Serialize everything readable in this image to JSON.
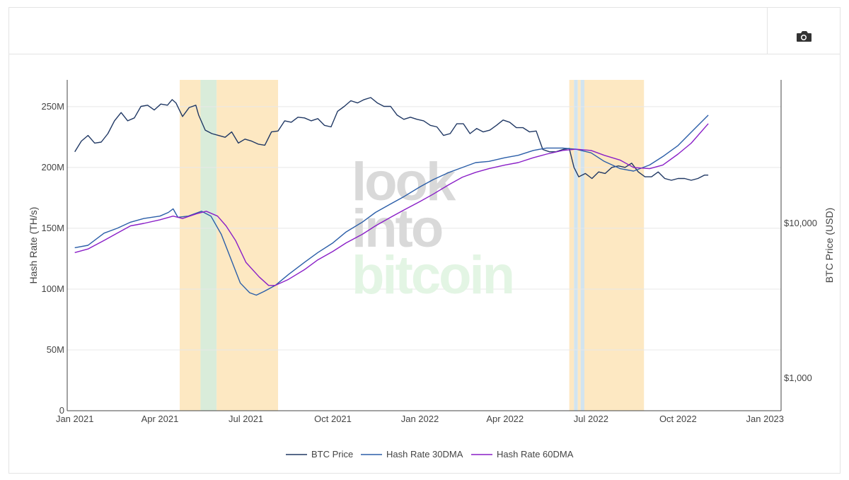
{
  "toolbar": {
    "camera_icon": "camera-icon"
  },
  "colors": {
    "btc_price": "#203864",
    "hash_30": "#2b5ea8",
    "hash_60": "#8a1fc7",
    "band_orange": "#fde8c2",
    "band_green": "#d9ecda",
    "band_blue": "#d2e4ef"
  },
  "watermark": [
    "look",
    "into",
    "bitcoin"
  ],
  "chart_data": {
    "type": "line",
    "xlabel": "",
    "ylabel": "Hash Rate (TH/s)",
    "y2label": "BTC Price (USD)",
    "ylim": [
      0,
      272
    ],
    "y2_scale": "log",
    "x_ticks": [
      {
        "date": "2021-01-01",
        "label": "Jan 2021"
      },
      {
        "date": "2021-04-01",
        "label": "Apr 2021"
      },
      {
        "date": "2021-07-01",
        "label": "Jul 2021"
      },
      {
        "date": "2021-10-01",
        "label": "Oct 2021"
      },
      {
        "date": "2022-01-01",
        "label": "Jan 2022"
      },
      {
        "date": "2022-04-01",
        "label": "Apr 2022"
      },
      {
        "date": "2022-07-01",
        "label": "Jul 2022"
      },
      {
        "date": "2022-10-01",
        "label": "Oct 2022"
      },
      {
        "date": "2023-01-01",
        "label": "Jan 2023"
      }
    ],
    "y_ticks": [
      {
        "value": 0,
        "label": "0"
      },
      {
        "value": 50,
        "label": "50M"
      },
      {
        "value": 100,
        "label": "100M"
      },
      {
        "value": 150,
        "label": "150M"
      },
      {
        "value": 200,
        "label": "200M"
      },
      {
        "value": 250,
        "label": "250M"
      }
    ],
    "y2_ticks": [
      {
        "value": 1000,
        "label": "$1,000"
      },
      {
        "value": 10000,
        "label": "$10,000"
      }
    ],
    "grid": true,
    "legend": "bottom-center",
    "bands": [
      {
        "start": "2021-04-22",
        "end": "2021-05-14",
        "kind": "orange"
      },
      {
        "start": "2021-05-14",
        "end": "2021-05-31",
        "kind": "green"
      },
      {
        "start": "2021-05-31",
        "end": "2021-08-04",
        "kind": "orange"
      },
      {
        "start": "2022-06-08",
        "end": "2022-06-13",
        "kind": "orange"
      },
      {
        "start": "2022-06-13",
        "end": "2022-06-17",
        "kind": "blue"
      },
      {
        "start": "2022-06-17",
        "end": "2022-06-20",
        "kind": "orange"
      },
      {
        "start": "2022-06-20",
        "end": "2022-06-24",
        "kind": "blue"
      },
      {
        "start": "2022-06-24",
        "end": "2022-08-26",
        "kind": "orange"
      }
    ],
    "series": [
      {
        "name": "BTC Price",
        "axis": "y2",
        "x": [
          "2021-01-01",
          "2021-01-08",
          "2021-01-15",
          "2021-01-22",
          "2021-01-29",
          "2021-02-05",
          "2021-02-12",
          "2021-02-19",
          "2021-02-26",
          "2021-03-05",
          "2021-03-12",
          "2021-03-19",
          "2021-03-26",
          "2021-04-02",
          "2021-04-09",
          "2021-04-14",
          "2021-04-18",
          "2021-04-25",
          "2021-05-02",
          "2021-05-09",
          "2021-05-12",
          "2021-05-19",
          "2021-05-26",
          "2021-06-02",
          "2021-06-09",
          "2021-06-16",
          "2021-06-23",
          "2021-06-30",
          "2021-07-07",
          "2021-07-14",
          "2021-07-21",
          "2021-07-28",
          "2021-08-04",
          "2021-08-11",
          "2021-08-18",
          "2021-08-25",
          "2021-09-01",
          "2021-09-08",
          "2021-09-15",
          "2021-09-22",
          "2021-09-29",
          "2021-10-06",
          "2021-10-13",
          "2021-10-20",
          "2021-10-27",
          "2021-11-03",
          "2021-11-10",
          "2021-11-17",
          "2021-11-24",
          "2021-12-01",
          "2021-12-08",
          "2021-12-15",
          "2021-12-22",
          "2021-12-29",
          "2022-01-05",
          "2022-01-12",
          "2022-01-19",
          "2022-01-26",
          "2022-02-02",
          "2022-02-09",
          "2022-02-16",
          "2022-02-23",
          "2022-03-02",
          "2022-03-09",
          "2022-03-16",
          "2022-03-23",
          "2022-03-30",
          "2022-04-06",
          "2022-04-13",
          "2022-04-20",
          "2022-04-27",
          "2022-05-04",
          "2022-05-11",
          "2022-05-18",
          "2022-05-25",
          "2022-06-01",
          "2022-06-08",
          "2022-06-13",
          "2022-06-18",
          "2022-06-25",
          "2022-07-02",
          "2022-07-09",
          "2022-07-16",
          "2022-07-23",
          "2022-07-30",
          "2022-08-06",
          "2022-08-13",
          "2022-08-20",
          "2022-08-27",
          "2022-09-03",
          "2022-09-10",
          "2022-09-17",
          "2022-09-24",
          "2022-10-01",
          "2022-10-08",
          "2022-10-15",
          "2022-10-22",
          "2022-10-29",
          "2022-11-02"
        ],
        "values": [
          29000,
          34000,
          37000,
          33000,
          33500,
          38000,
          46000,
          52000,
          46000,
          48000,
          57000,
          58000,
          54000,
          59000,
          58000,
          63000,
          60000,
          49000,
          56000,
          58000,
          50000,
          40000,
          38000,
          37000,
          36000,
          39000,
          33000,
          35000,
          34000,
          32500,
          32000,
          39000,
          39500,
          46000,
          45000,
          48500,
          48000,
          46000,
          47500,
          43000,
          42000,
          53000,
          57000,
          62000,
          60000,
          63000,
          65000,
          60000,
          57000,
          57000,
          50000,
          47000,
          48500,
          47000,
          46000,
          43000,
          42000,
          37000,
          38000,
          44000,
          44000,
          38000,
          41000,
          39000,
          40000,
          43000,
          46500,
          45000,
          41500,
          41500,
          39000,
          39500,
          30000,
          29000,
          29000,
          30000,
          30500,
          23000,
          20000,
          21000,
          19500,
          21500,
          21000,
          23000,
          23500,
          23000,
          24500,
          21500,
          20000,
          20000,
          21500,
          19500,
          19000,
          19500,
          19500,
          19000,
          19500,
          20500,
          20500
        ]
      },
      {
        "name": "Hash Rate 30DMA",
        "axis": "y",
        "x": [
          "2021-01-01",
          "2021-01-15",
          "2021-02-01",
          "2021-02-15",
          "2021-03-01",
          "2021-03-15",
          "2021-04-01",
          "2021-04-10",
          "2021-04-15",
          "2021-04-20",
          "2021-05-01",
          "2021-05-15",
          "2021-05-25",
          "2021-06-05",
          "2021-06-15",
          "2021-06-25",
          "2021-07-05",
          "2021-07-12",
          "2021-07-20",
          "2021-08-01",
          "2021-08-15",
          "2021-09-01",
          "2021-09-15",
          "2021-10-01",
          "2021-10-15",
          "2021-11-01",
          "2021-11-15",
          "2021-12-01",
          "2021-12-15",
          "2022-01-01",
          "2022-01-15",
          "2022-02-01",
          "2022-02-15",
          "2022-03-01",
          "2022-03-15",
          "2022-04-01",
          "2022-04-15",
          "2022-05-01",
          "2022-05-15",
          "2022-06-01",
          "2022-06-15",
          "2022-07-01",
          "2022-07-15",
          "2022-08-01",
          "2022-08-15",
          "2022-09-01",
          "2022-09-15",
          "2022-10-01",
          "2022-10-15",
          "2022-11-02"
        ],
        "values": [
          134,
          136,
          146,
          150,
          155,
          158,
          160,
          163,
          166,
          159,
          160,
          164,
          160,
          145,
          125,
          105,
          97,
          95,
          98,
          103,
          112,
          122,
          130,
          138,
          147,
          155,
          163,
          170,
          176,
          184,
          190,
          196,
          200,
          204,
          205,
          208,
          210,
          214,
          216,
          216,
          215,
          212,
          205,
          199,
          197,
          202,
          209,
          218,
          229,
          243
        ]
      },
      {
        "name": "Hash Rate 60DMA",
        "axis": "y",
        "x": [
          "2021-01-01",
          "2021-01-15",
          "2021-02-01",
          "2021-02-15",
          "2021-03-01",
          "2021-03-15",
          "2021-04-01",
          "2021-04-15",
          "2021-04-25",
          "2021-05-10",
          "2021-05-20",
          "2021-06-01",
          "2021-06-10",
          "2021-06-20",
          "2021-07-01",
          "2021-07-15",
          "2021-07-25",
          "2021-08-01",
          "2021-08-15",
          "2021-09-01",
          "2021-09-15",
          "2021-10-01",
          "2021-10-15",
          "2021-11-01",
          "2021-11-15",
          "2021-12-01",
          "2021-12-15",
          "2022-01-01",
          "2022-01-15",
          "2022-02-01",
          "2022-02-15",
          "2022-03-01",
          "2022-03-15",
          "2022-04-01",
          "2022-04-15",
          "2022-05-01",
          "2022-05-15",
          "2022-06-01",
          "2022-06-15",
          "2022-07-01",
          "2022-07-15",
          "2022-08-01",
          "2022-08-15",
          "2022-09-01",
          "2022-09-15",
          "2022-10-01",
          "2022-10-15",
          "2022-11-02"
        ],
        "values": [
          130,
          133,
          140,
          146,
          152,
          154,
          157,
          160,
          158,
          162,
          164,
          160,
          152,
          140,
          122,
          110,
          103,
          103,
          108,
          116,
          124,
          131,
          138,
          145,
          152,
          159,
          165,
          172,
          178,
          186,
          192,
          196,
          199,
          202,
          204,
          208,
          211,
          214,
          215,
          214,
          210,
          206,
          200,
          199,
          202,
          211,
          220,
          236
        ]
      }
    ]
  }
}
